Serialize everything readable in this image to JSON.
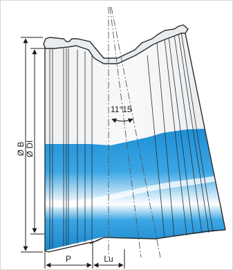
{
  "diagram": {
    "labels": {
      "diameter_b": "Ø B",
      "diameter_di": "Ø DI",
      "angle": "11°15",
      "dim_p": "P",
      "dim_lu": "Lu"
    },
    "colors": {
      "background": "#ffffff",
      "water_blue": "#1e8fd5",
      "water_light": "#8fd0f3",
      "pipe_grey": "#d9dde1",
      "outline": "#2b2b2b"
    },
    "icons": [
      "arrowhead-icon"
    ]
  }
}
